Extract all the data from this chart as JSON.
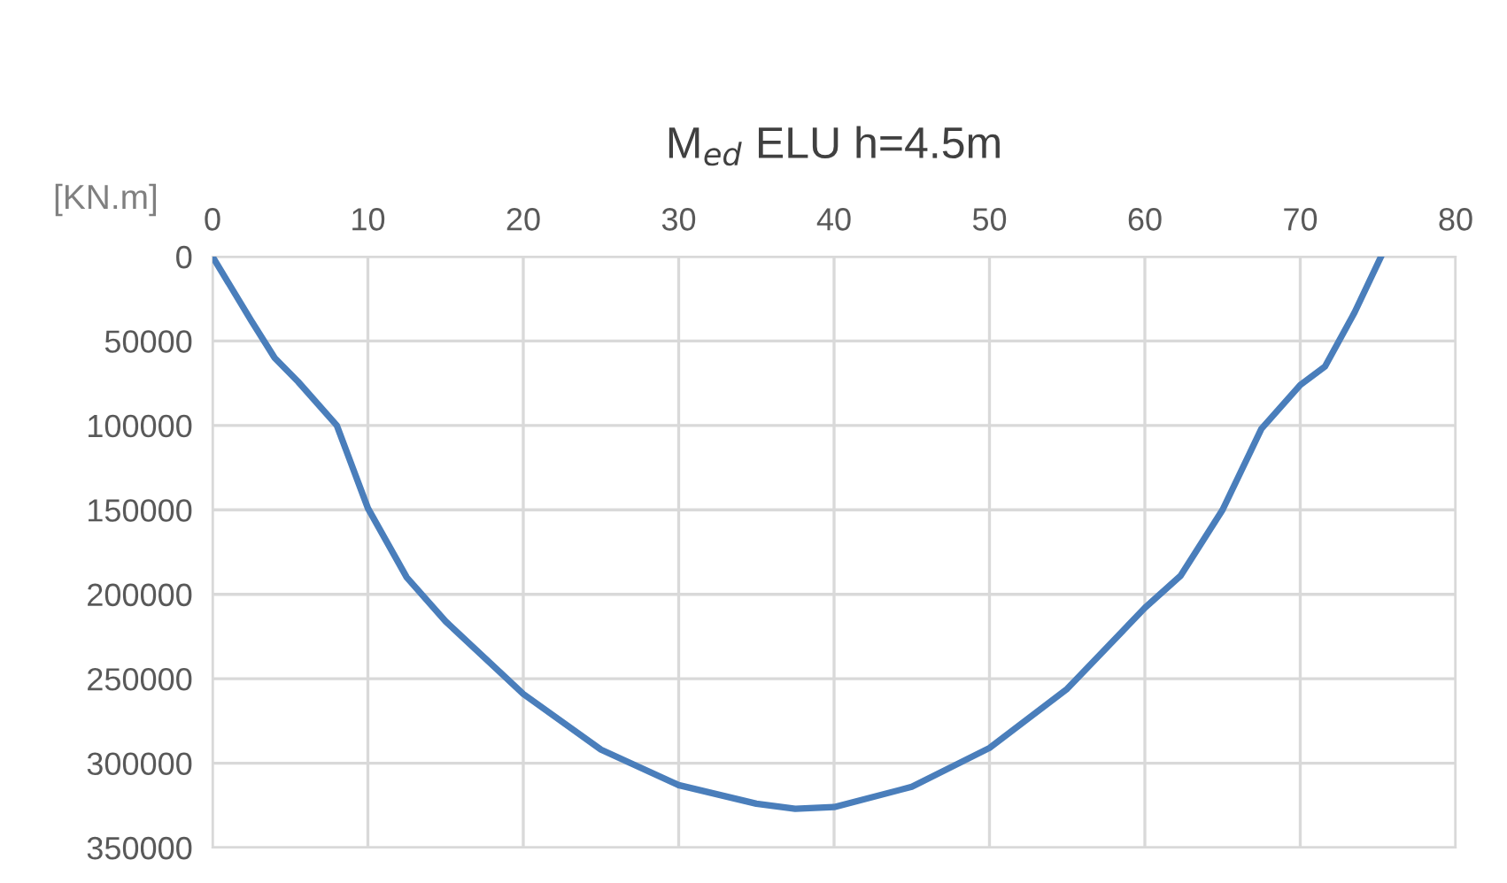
{
  "chart_data": {
    "type": "line",
    "title": "M$_{ed}$ ELU h=4.5m",
    "ylabel": "[KN.m]",
    "series": [
      {
        "color": "#4a7ebb",
        "x": [
          0,
          2.5,
          4,
          5.5,
          8,
          10,
          12.5,
          15,
          20,
          25,
          30,
          35,
          37.5,
          40,
          45,
          50,
          55,
          60,
          62.3,
          65,
          67.5,
          70,
          71.6,
          73.5,
          75.2
        ],
        "values": [
          0,
          38000,
          60000,
          74000,
          100000,
          149000,
          190000,
          216000,
          259000,
          292000,
          313000,
          324000,
          327000,
          326000,
          314000,
          291000,
          256000,
          208000,
          189000,
          150000,
          102000,
          76000,
          65000,
          33000,
          0
        ]
      }
    ],
    "xlim": [
      0,
      80
    ],
    "xticks": [
      0,
      10,
      20,
      30,
      40,
      50,
      60,
      70,
      80
    ],
    "ylim": [
      350000,
      0
    ],
    "yticks": [
      0,
      50000,
      100000,
      150000,
      200000,
      250000,
      300000,
      350000
    ],
    "grid": true,
    "marker": "none",
    "line_style": "solid"
  }
}
